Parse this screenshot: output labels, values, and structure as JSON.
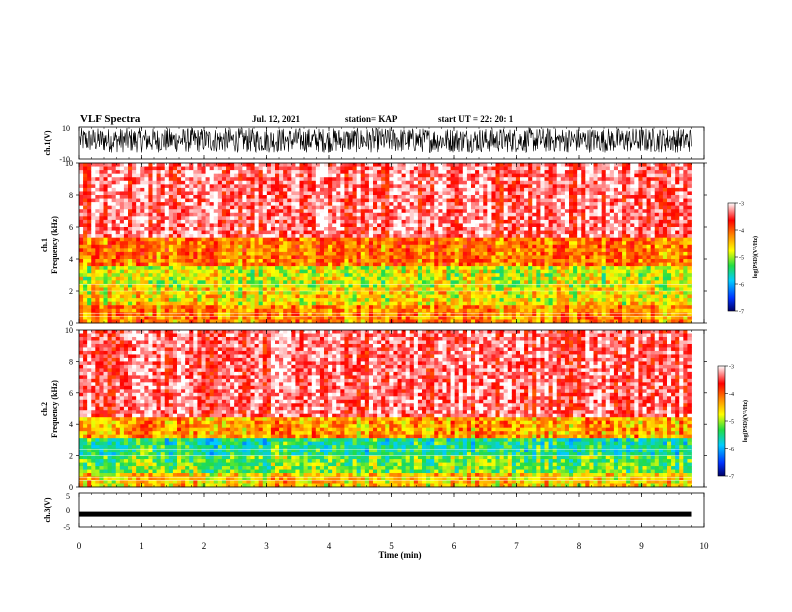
{
  "header": {
    "title": "VLF Spectra",
    "date": "Jul. 12, 2021",
    "station": "station= KAP",
    "start": "start UT = 22: 20: 1"
  },
  "chart_data": [
    {
      "type": "line",
      "panel": "ch1-waveform",
      "ylabel": "ch.1(V)",
      "ylim": [
        -10,
        10
      ],
      "xlim": [
        0,
        10
      ],
      "yticks": [
        "10",
        "-10"
      ],
      "note": "dense noisy waveform filling roughly -7 to 10 V"
    },
    {
      "type": "heatmap",
      "panel": "ch1-spectrogram",
      "ylabel_top": "ch.1",
      "ylabel": "Frequency (kHz)",
      "ylim": [
        0,
        10
      ],
      "yticks": [
        "0",
        "2",
        "4",
        "6",
        "8",
        "10"
      ],
      "xlim": [
        0,
        9.8
      ],
      "colorbar": {
        "label": "log(PSD)(V²/Hz)",
        "range": [
          -7,
          -3
        ],
        "ticks": [
          "-3",
          "-4",
          "-5",
          "-6",
          "-7"
        ],
        "colors": [
          "#000066",
          "#0033ff",
          "#00ccff",
          "#22dd44",
          "#ffff00",
          "#ff8800",
          "#ff0000",
          "#ffffff"
        ]
      },
      "bands_khz": [
        {
          "from": 0,
          "to": 1.2,
          "level": -4.3
        },
        {
          "from": 1.2,
          "to": 2.2,
          "level": -4.7
        },
        {
          "from": 2.2,
          "to": 3.6,
          "level": -4.9
        },
        {
          "from": 3.6,
          "to": 5.4,
          "level": -4.2
        },
        {
          "from": 5.4,
          "to": 10,
          "level": -3.4
        }
      ]
    },
    {
      "type": "heatmap",
      "panel": "ch2-spectrogram",
      "ylabel_top": "ch.2",
      "ylabel": "Frequency (kHz)",
      "ylim": [
        0,
        10
      ],
      "yticks": [
        "0",
        "2",
        "4",
        "6",
        "8",
        "10"
      ],
      "xlim": [
        0,
        9.8
      ],
      "colorbar": {
        "label": "log(PSD)(V²/Hz)",
        "range": [
          -7,
          -3
        ],
        "ticks": [
          "-3",
          "-4",
          "-5",
          "-6",
          "-7"
        ]
      },
      "bands_khz": [
        {
          "from": 0,
          "to": 1.0,
          "level": -4.6
        },
        {
          "from": 1.0,
          "to": 2.0,
          "level": -5.2
        },
        {
          "from": 2.0,
          "to": 3.2,
          "level": -5.5
        },
        {
          "from": 3.2,
          "to": 4.4,
          "level": -4.4
        },
        {
          "from": 4.4,
          "to": 10,
          "level": -3.4
        }
      ]
    },
    {
      "type": "line",
      "panel": "ch3-waveform",
      "ylabel": "ch.3(V)",
      "ylim": [
        -5,
        5
      ],
      "yticks": [
        "5",
        "0",
        "-5"
      ],
      "xlim": [
        0,
        10
      ],
      "level_v": -1.2,
      "note": "nearly constant thick trace around -1.2 V ending at ~9.8 min"
    }
  ],
  "xaxis": {
    "label": "Time (min)",
    "ticks": [
      "0",
      "1",
      "2",
      "3",
      "4",
      "5",
      "6",
      "7",
      "8",
      "9",
      "10"
    ],
    "range": [
      0,
      10
    ]
  }
}
